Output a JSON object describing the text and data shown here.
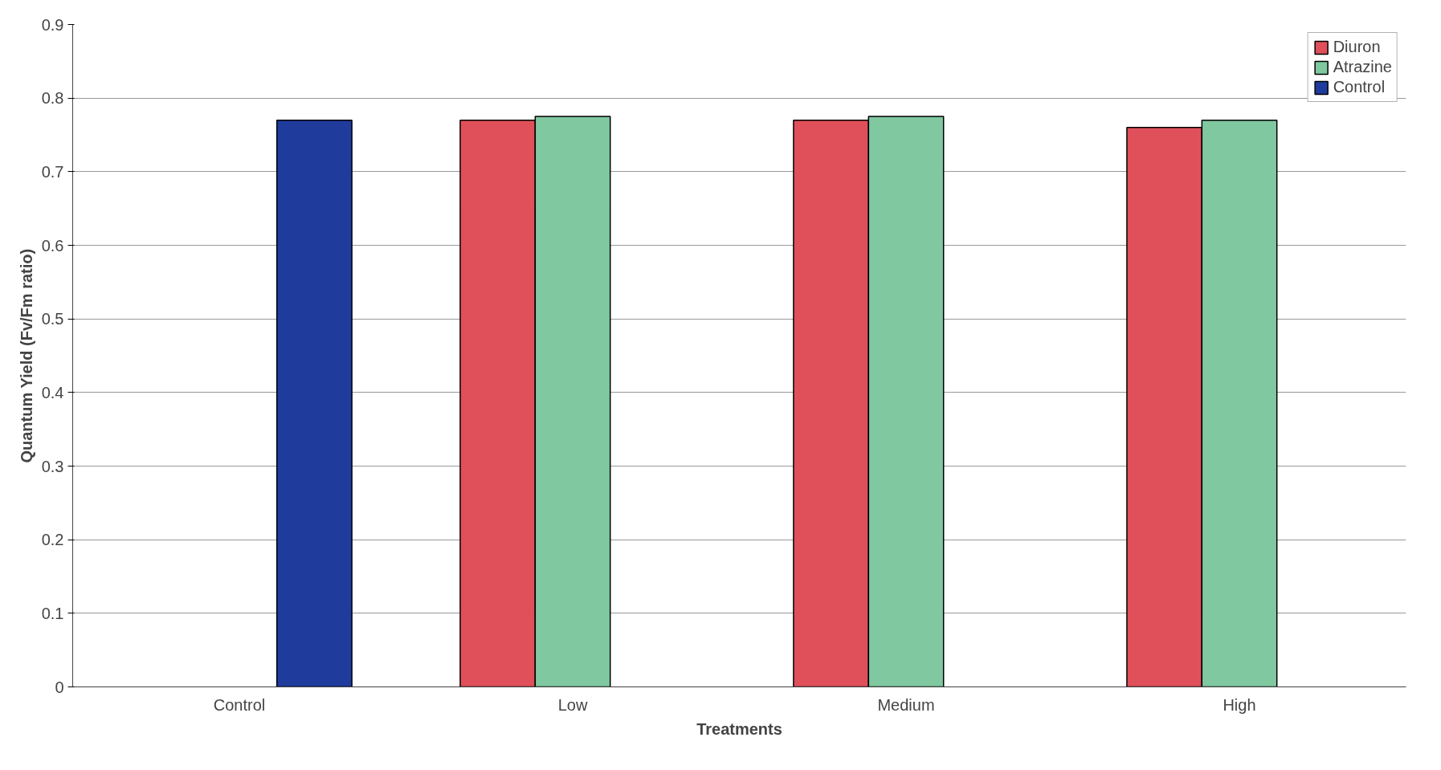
{
  "chart_data": {
    "type": "bar",
    "xlabel": "Treatments",
    "ylabel": "Quantum Yield (Fv/Fm ratio)",
    "categories": [
      "Control",
      "Low",
      "Medium",
      "High"
    ],
    "series": [
      {
        "name": "Diuron",
        "color": "#e0505a",
        "values": [
          null,
          0.77,
          0.77,
          0.76
        ]
      },
      {
        "name": "Atrazine",
        "color": "#80c8a0",
        "values": [
          null,
          0.775,
          0.775,
          0.77
        ]
      },
      {
        "name": "Control",
        "color": "#1f3c9c",
        "values": [
          0.77,
          null,
          null,
          null
        ]
      }
    ],
    "ylim": [
      0,
      0.9
    ],
    "yticks": [
      0,
      0.1,
      0.2,
      0.3,
      0.4,
      0.5,
      0.6,
      0.7,
      0.8,
      0.9
    ],
    "grid": "y",
    "legend": "top right"
  }
}
